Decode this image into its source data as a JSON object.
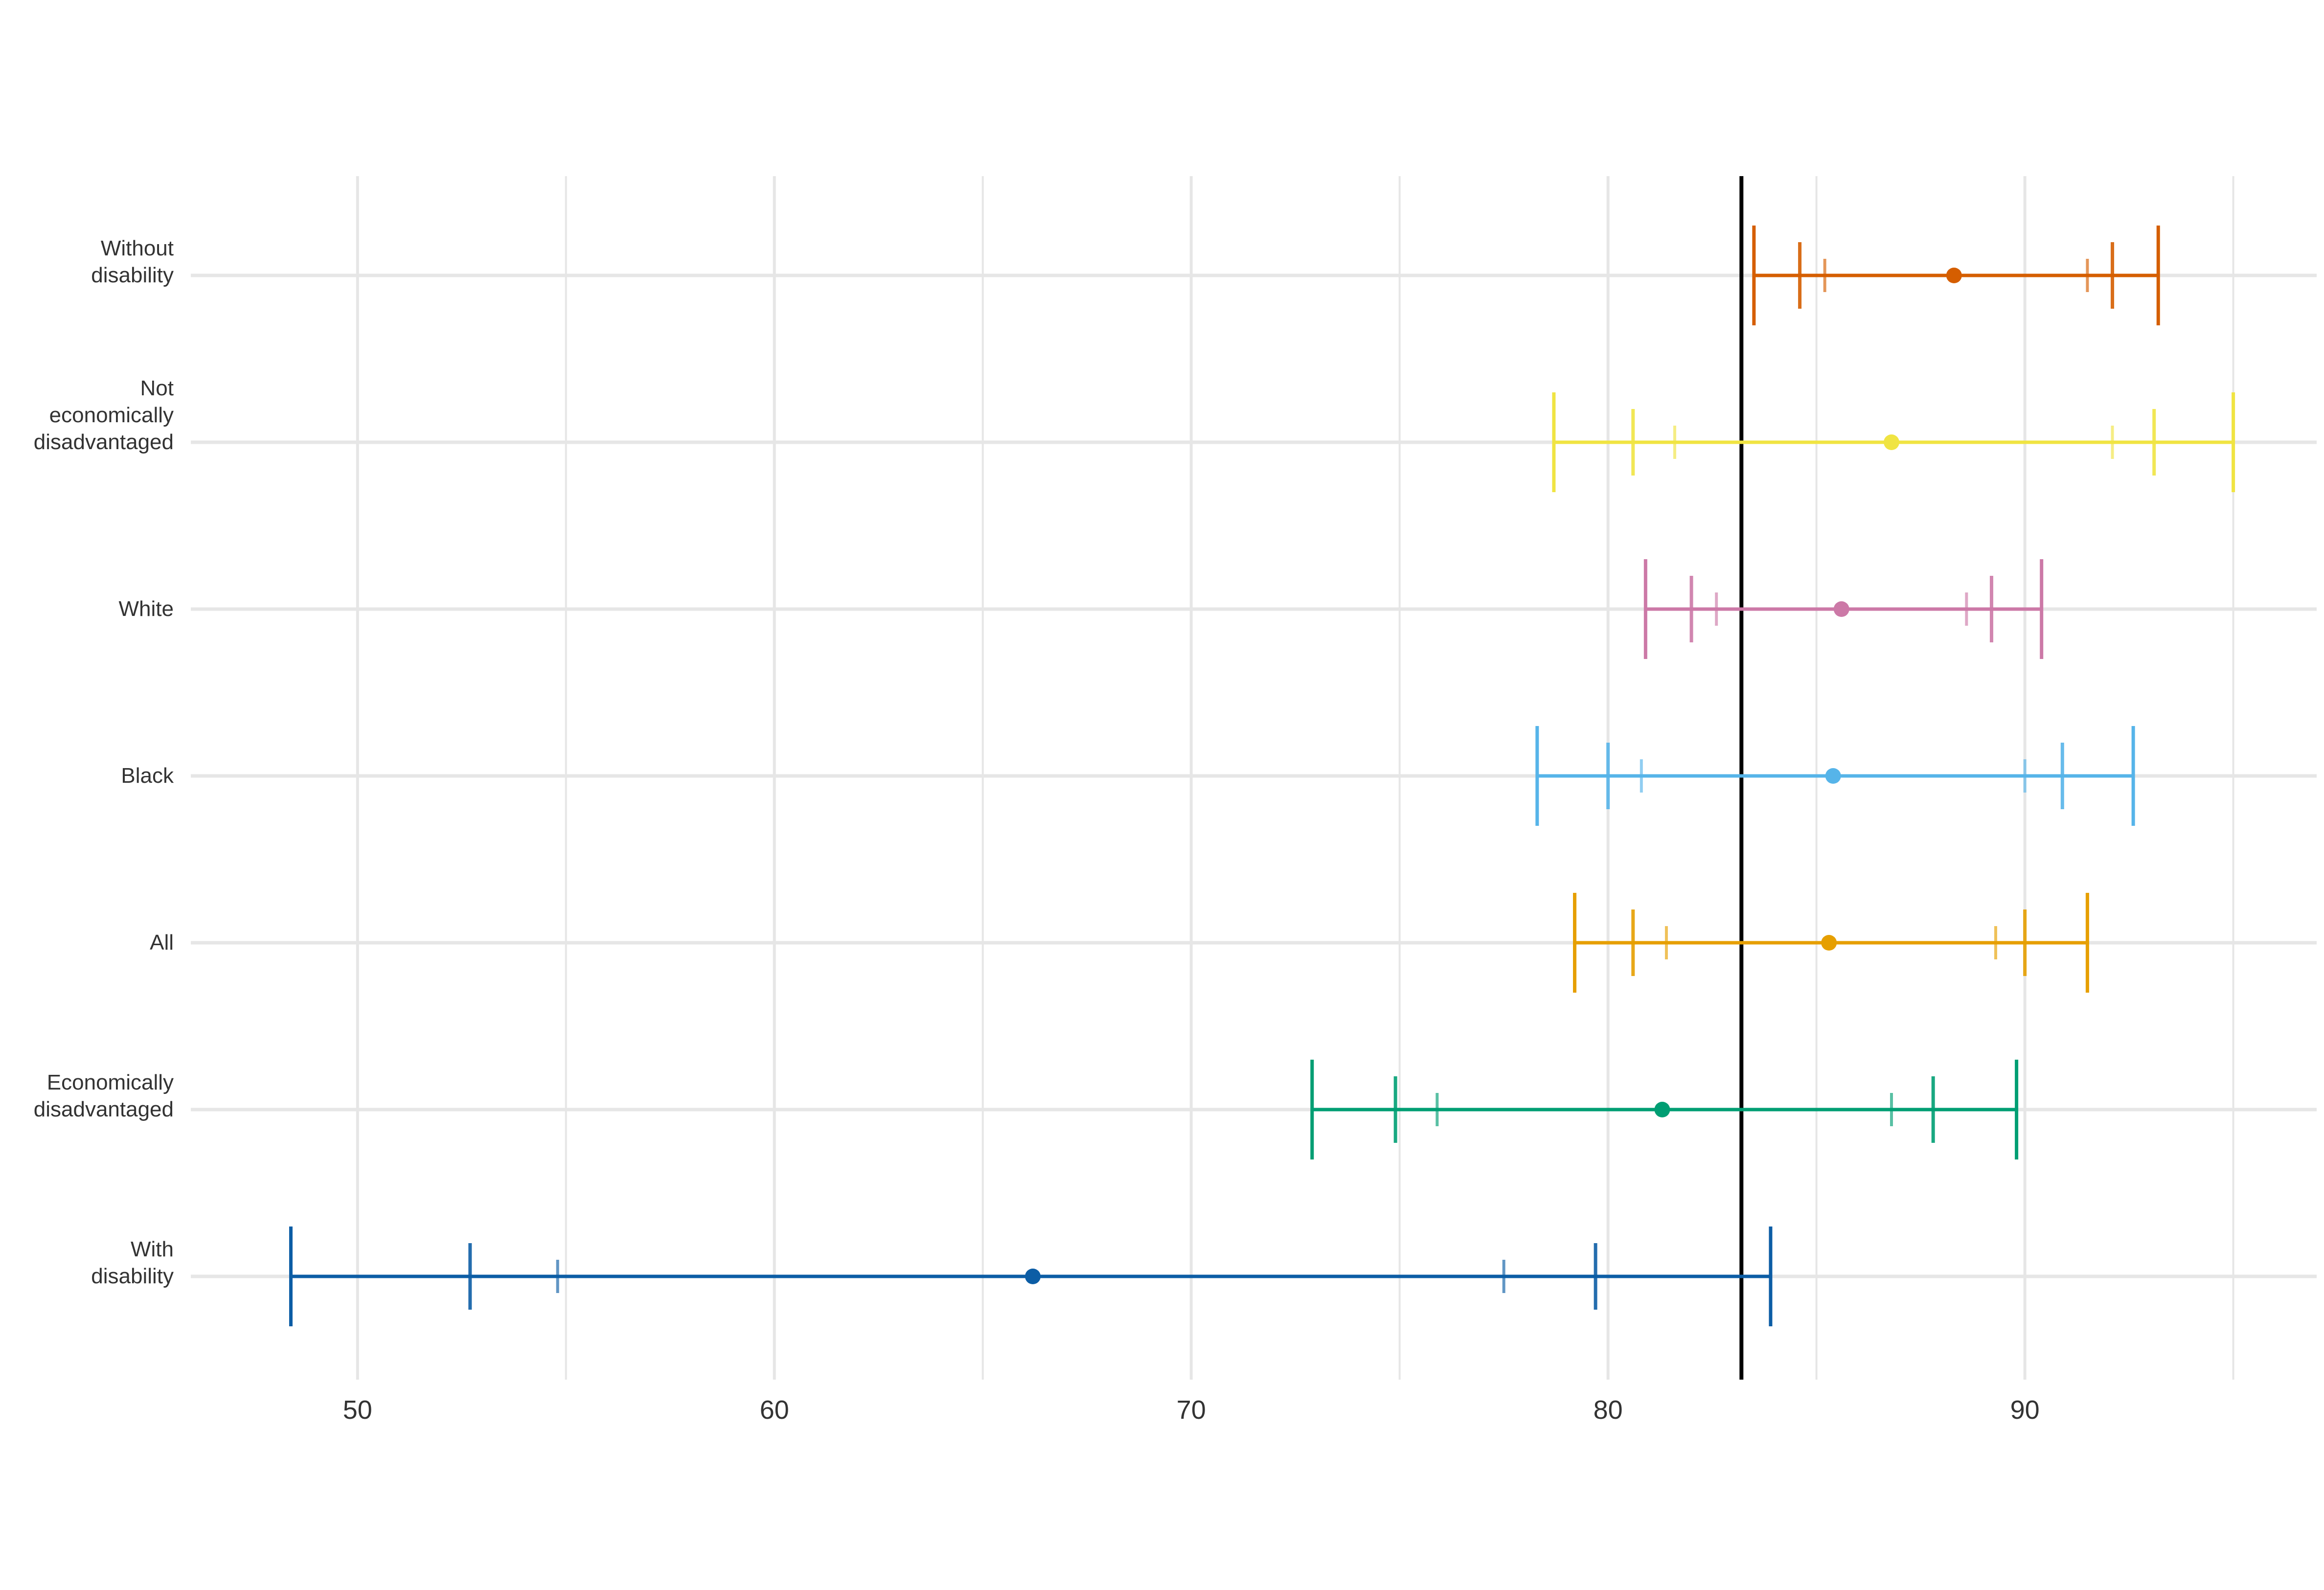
{
  "chart_data": {
    "type": "interval",
    "title": "",
    "xlabel": "",
    "ylabel": "",
    "xlim": [
      46,
      97
    ],
    "x_ticks": [
      50,
      60,
      70,
      80,
      90
    ],
    "x_tick_labels": [
      "50",
      "60",
      "70",
      "80",
      "90"
    ],
    "grid": true,
    "legend": "none",
    "reference_line": {
      "x": 83.2,
      "color": "#000000"
    },
    "series": [
      {
        "category": [
          "Without",
          "disability"
        ],
        "color": "#D55E00",
        "point": 88.3,
        "outer": [
          83.5,
          93.2
        ],
        "mid": [
          84.6,
          92.1
        ],
        "inner": [
          85.2,
          91.5
        ]
      },
      {
        "category": [
          "Not",
          "economically",
          "disadvantaged"
        ],
        "color": "#F0E442",
        "point": 86.8,
        "outer": [
          78.7,
          95.0
        ],
        "mid": [
          80.6,
          93.1
        ],
        "inner": [
          81.6,
          92.1
        ]
      },
      {
        "category": [
          "White"
        ],
        "color": "#CC79A7",
        "point": 85.6,
        "outer": [
          80.9,
          90.4
        ],
        "mid": [
          82.0,
          89.2
        ],
        "inner": [
          82.6,
          88.6
        ]
      },
      {
        "category": [
          "Black"
        ],
        "color": "#56B4E9",
        "point": 85.4,
        "outer": [
          78.3,
          92.6
        ],
        "mid": [
          80.0,
          90.9
        ],
        "inner": [
          80.8,
          90.0
        ]
      },
      {
        "category": [
          "All"
        ],
        "color": "#E69F00",
        "point": 85.3,
        "outer": [
          79.2,
          91.5
        ],
        "mid": [
          80.6,
          90.0
        ],
        "inner": [
          81.4,
          89.3
        ]
      },
      {
        "category": [
          "Economically",
          "disadvantaged"
        ],
        "color": "#009E73",
        "point": 81.3,
        "outer": [
          72.9,
          89.8
        ],
        "mid": [
          74.9,
          87.8
        ],
        "inner": [
          75.9,
          86.8
        ]
      },
      {
        "category": [
          "With",
          "disability"
        ],
        "color": "#0C5DA5",
        "point": 66.2,
        "outer": [
          48.4,
          83.9
        ],
        "mid": [
          52.7,
          79.7
        ],
        "inner": [
          54.8,
          77.5
        ]
      }
    ]
  }
}
